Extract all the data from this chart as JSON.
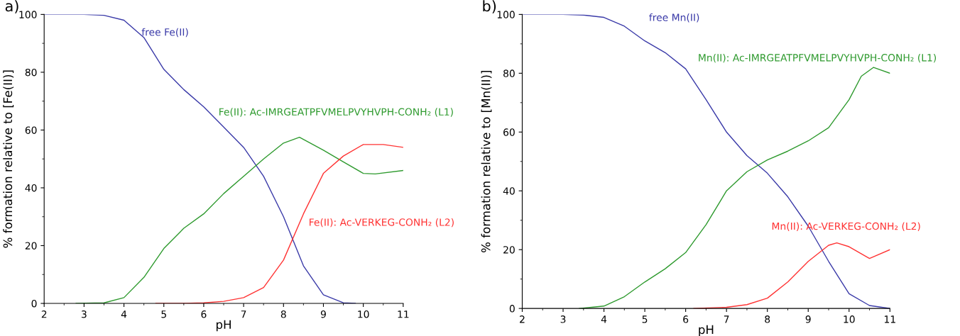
{
  "chart_data": [
    {
      "type": "line",
      "title": "a)",
      "xlabel": "pH",
      "ylabel": "% formation relative to [Fe(II)]",
      "xlim": [
        2,
        11
      ],
      "ylim": [
        0,
        100
      ],
      "xticks": [
        2,
        3,
        4,
        5,
        6,
        7,
        8,
        9,
        10,
        11
      ],
      "yticks": [
        0,
        20,
        40,
        60,
        80,
        100
      ],
      "grid": false,
      "legend": false,
      "marker": "none",
      "line_style": "solid",
      "series": [
        {
          "name": "free Fe(II)",
          "color": "#3a3aa8",
          "x": [
            2,
            3,
            3.5,
            4,
            4.5,
            5,
            5.5,
            6,
            6.5,
            7,
            7.5,
            8,
            8.5,
            9,
            9.5,
            9.8
          ],
          "values": [
            100,
            100,
            99.7,
            98,
            92,
            81,
            74,
            68,
            61,
            54,
            44,
            30,
            13,
            3,
            0.2,
            0
          ]
        },
        {
          "name": "Fe(II): Ac-IMRGEATPFVMELPVYHVPH-CONH₂ (L1)",
          "color": "#2e9a2e",
          "x": [
            2.8,
            3.5,
            4,
            4.5,
            5,
            5.5,
            6,
            6.5,
            7,
            7.5,
            8,
            8.4,
            9,
            9.5,
            10,
            10.3,
            11
          ],
          "values": [
            0,
            0.2,
            2,
            9,
            19,
            26,
            31,
            38,
            44,
            50,
            55.5,
            57.5,
            53,
            49,
            45,
            44.8,
            46
          ]
        },
        {
          "name": "Fe(II): Ac-VERKEG-CONH₂ (L2)",
          "color": "#ff3333",
          "x": [
            4.8,
            5.5,
            6,
            6.5,
            7,
            7.5,
            8,
            8.5,
            9,
            9.5,
            10,
            10.5,
            11
          ],
          "values": [
            0,
            0,
            0.2,
            0.7,
            2,
            5.5,
            15,
            31,
            45,
            51,
            55,
            55,
            54
          ]
        }
      ]
    },
    {
      "type": "line",
      "title": "b)",
      "xlabel": "pH",
      "ylabel": "% formation relative to [Mn(II)]",
      "xlim": [
        2,
        11
      ],
      "ylim": [
        0,
        100
      ],
      "xticks": [
        2,
        3,
        4,
        5,
        6,
        7,
        8,
        9,
        10,
        11
      ],
      "yticks": [
        0,
        20,
        40,
        60,
        80,
        100
      ],
      "grid": false,
      "legend": false,
      "marker": "none",
      "line_style": "solid",
      "series": [
        {
          "name": "free Mn(II)",
          "color": "#3a3aa8",
          "x": [
            2,
            3,
            3.5,
            4,
            4.5,
            5,
            5.5,
            6,
            6.5,
            7,
            7.5,
            8,
            8.5,
            9,
            9.5,
            10,
            10.5,
            11
          ],
          "values": [
            100,
            100,
            99.8,
            99,
            96,
            91,
            87,
            81.5,
            71,
            60,
            52,
            46,
            38,
            28,
            16,
            5,
            1,
            0
          ]
        },
        {
          "name": "Mn(II): Ac-IMRGEATPFVMELPVYHVPH-CONH₂ (L1)",
          "color": "#2e9a2e",
          "x": [
            3.4,
            4,
            4.5,
            5,
            5.5,
            6,
            6.5,
            7,
            7.5,
            8,
            8.5,
            9,
            9.5,
            10,
            10.3,
            10.6,
            11
          ],
          "values": [
            0,
            0.8,
            4,
            9,
            13.5,
            19,
            28.5,
            40,
            46.5,
            50.5,
            53.5,
            57,
            61.5,
            71,
            79,
            82,
            80
          ]
        },
        {
          "name": "Mn(II): Ac-VERKEG-CONH₂ (L2)",
          "color": "#ff3333",
          "x": [
            6.2,
            7,
            7.5,
            8,
            8.5,
            9,
            9.5,
            9.7,
            10,
            10.5,
            11
          ],
          "values": [
            0,
            0.4,
            1.3,
            3.5,
            9,
            16,
            21.5,
            22.3,
            21,
            17,
            20
          ]
        }
      ]
    }
  ]
}
